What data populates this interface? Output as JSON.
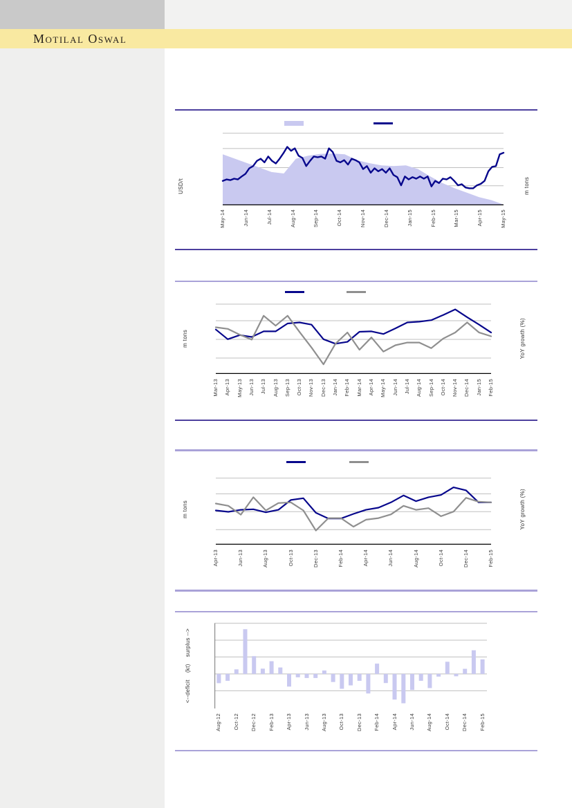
{
  "header": {
    "brand": "Motilal Oswal",
    "band_color": "#f9e9a1",
    "corner_block_color": "#c9c9c9",
    "strip_color": "#f2f2f1",
    "text_color": "#26201c"
  },
  "sidebar": {
    "color": "#efefee"
  },
  "palette": {
    "navy": "#07078c",
    "gray_line": "#8f8f8f",
    "lavender_fill": "#c9c9f0",
    "grid": "#bfbfbf",
    "axis": "#000000",
    "divider_dark": "#4c3f9e",
    "divider_light": "#a9a2d8",
    "tick_text": "#3a3a3a"
  },
  "chart_data": [
    {
      "name": "price-area-line-chart",
      "type": "area+line",
      "title": "",
      "ylabel_left": "USD/t",
      "ylabel_right": "m tons",
      "x_labels": [
        "May-14",
        "Jun-14",
        "Jul-14",
        "Aug-14",
        "Sep-14",
        "Oct-14",
        "Nov-14",
        "Dec-14",
        "Jan-15",
        "Feb-15",
        "Mar-15",
        "Apr-15",
        "May-15"
      ],
      "x_label_stride": 1,
      "grid_rel": [
        26.4,
        50.9,
        76.7,
        97.5
      ],
      "legend": [
        {
          "label": "",
          "swatch": "area"
        },
        {
          "label": "",
          "swatch": "navy"
        }
      ],
      "area": {
        "color": "#c9c9f0",
        "values_rel": [
          69,
          63,
          57,
          51,
          45,
          43,
          63,
          67,
          69.5,
          70,
          69,
          61,
          57,
          54,
          53,
          54,
          49,
          39,
          30,
          23,
          17,
          11,
          7,
          1
        ]
      },
      "series": [
        {
          "label": "",
          "color": "#07078c",
          "width": 2.4,
          "values_rel": [
            33,
            35,
            34,
            36,
            35,
            39,
            42.5,
            50,
            53,
            60,
            63,
            58,
            66,
            60,
            56.5,
            63,
            70.5,
            79,
            73.6,
            77,
            67,
            64,
            53,
            60,
            66,
            65,
            66,
            63,
            77,
            72,
            60,
            58,
            61,
            55,
            63,
            61,
            58,
            49,
            53,
            44,
            50,
            46,
            49,
            44,
            50,
            41,
            38,
            27,
            39,
            35,
            38,
            36,
            39,
            36,
            39,
            25.5,
            33,
            30,
            36,
            35,
            38,
            33,
            27,
            28.5,
            24,
            23,
            23,
            27,
            29,
            33,
            46,
            52,
            53,
            69,
            71
          ]
        }
      ]
    },
    {
      "name": "yoy-growth-line-chart-1",
      "type": "line",
      "title": "",
      "ylabel_left": "m tons",
      "ylabel_right": "YoY growth (%)",
      "x_labels": [
        "Mar-13",
        "Apr-13",
        "May-13",
        "Jun-13",
        "Jul-13",
        "Aug-13",
        "Sep-13",
        "Oct-13",
        "Nov-13",
        "Dec-13",
        "Jan-14",
        "Feb-14",
        "Mar-14",
        "Apr-14",
        "May-14",
        "Jun-14",
        "Jul-14",
        "Aug-14",
        "Sep-14",
        "Oct-14",
        "Nov-14",
        "Dec-14",
        "Jan-15",
        "Feb-15"
      ],
      "x_label_stride": 1,
      "grid_rel": [
        21.3,
        46.3,
        71.3,
        93.5
      ],
      "legend": [
        {
          "label": "",
          "swatch": "navy"
        },
        {
          "label": "",
          "swatch": "gray"
        }
      ],
      "series": [
        {
          "label": "",
          "color": "#07078c",
          "width": 2.2,
          "values_rel": [
            59.5,
            46.5,
            52,
            49.5,
            57,
            57,
            67.6,
            69,
            66,
            46.5,
            40.5,
            43,
            56.5,
            57,
            53.5,
            61,
            69,
            70,
            72,
            79,
            86.5,
            76,
            66,
            55.5
          ]
        },
        {
          "label": "",
          "color": "#8f8f8f",
          "width": 2.2,
          "values_rel": [
            62.5,
            60.4,
            52.6,
            45.9,
            78,
            64.6,
            78,
            56.2,
            35.4,
            12.9,
            40.5,
            55.6,
            32.4,
            48.9,
            29.9,
            38.4,
            42,
            42,
            34.5,
            47.4,
            55.5,
            69,
            55.5,
            50.5
          ]
        }
      ]
    },
    {
      "name": "yoy-growth-line-chart-2",
      "type": "line",
      "title": "",
      "ylabel_left": "m tons",
      "ylabel_right": "YoY growth (%)",
      "x_labels": [
        "Apr-13",
        "Jun-13",
        "Aug-13",
        "Oct-13",
        "Dec-13",
        "Feb-14",
        "Apr-14",
        "Jun-14",
        "Aug-14",
        "Oct-14",
        "Dec-14",
        "Feb-15"
      ],
      "x_label_stride": 2,
      "grid_rel": [
        20.1,
        44.3,
        68.1,
        89.2
      ],
      "legend": [
        {
          "label": "",
          "swatch": "navy"
        },
        {
          "label": "",
          "swatch": "gray"
        }
      ],
      "series": [
        {
          "label": "",
          "color": "#07078c",
          "width": 2.2,
          "values_rel": [
            45.8,
            44,
            46.7,
            47.4,
            43.3,
            46.7,
            59.8,
            62.2,
            42.7,
            35,
            35,
            41.2,
            46.7,
            49.5,
            56.7,
            65.9,
            58.2,
            63.5,
            66.6,
            76.8,
            72.8,
            56.7,
            56.7
          ]
        },
        {
          "label": "",
          "color": "#8f8f8f",
          "width": 2.2,
          "values_rel": [
            55.1,
            52,
            40.2,
            63.5,
            45.8,
            55.7,
            56.7,
            45.8,
            18.9,
            35.6,
            35.6,
            24.1,
            33.4,
            35.6,
            40.6,
            52,
            46.7,
            48.9,
            38.1,
            44.3,
            62.8,
            57.5,
            56.7
          ]
        }
      ]
    },
    {
      "name": "deficit-surplus-bar-chart",
      "type": "bar",
      "title": "",
      "ylabel_left": "<--deficit    (kt)    surplus -->",
      "x_labels": [
        "Aug-12",
        "Oct-12",
        "Dec-12",
        "Feb-13",
        "Apr-13",
        "Jun-13",
        "Aug-13",
        "Oct-13",
        "Dec-13",
        "Feb-14",
        "Apr-14",
        "Jun-14",
        "Aug-14",
        "Oct-14",
        "Dec-14",
        "Feb-15"
      ],
      "x_label_stride": 2,
      "bar_color": "#c9c9f0",
      "grid_units": [
        3,
        2,
        1,
        0,
        -1
      ],
      "ylim": [
        -2.05,
        3.07
      ],
      "values_units": [
        -0.55,
        -0.41,
        0.27,
        2.65,
        1.05,
        0.31,
        0.75,
        0.38,
        -0.75,
        -0.2,
        -0.24,
        -0.24,
        0.2,
        -0.48,
        -0.88,
        -0.68,
        -0.41,
        -1.16,
        0.61,
        -0.54,
        -1.52,
        -1.74,
        -0.95,
        -0.41,
        -0.84,
        -0.16,
        0.72,
        -0.14,
        0.3,
        1.4,
        0.86
      ]
    }
  ]
}
